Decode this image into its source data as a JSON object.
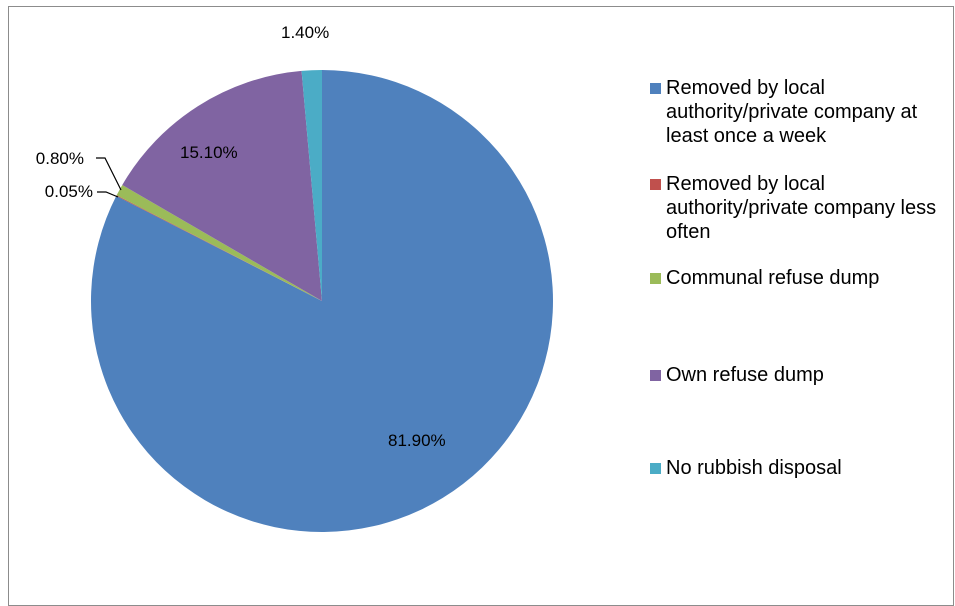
{
  "chart_data": {
    "type": "pie",
    "slices": [
      {
        "label": "Removed by local authority/private company at least once a week",
        "value": 81.9,
        "display": "81.90%",
        "color": "#4F81BD"
      },
      {
        "label": "Removed by local authority/private company less often",
        "value": 0.05,
        "display": "0.05%",
        "color": "#C0504D"
      },
      {
        "label": "Communal refuse dump",
        "value": 0.8,
        "display": "0.80%",
        "color": "#9BBB59"
      },
      {
        "label": "Own refuse dump",
        "value": 15.1,
        "display": "15.10%",
        "color": "#8064A2"
      },
      {
        "label": "No rubbish disposal",
        "value": 1.4,
        "display": "1.40%",
        "color": "#4BACC6"
      }
    ],
    "start": "12 o'clock",
    "direction": "clockwise",
    "legend_position": "right"
  },
  "legend": {
    "items": [
      {
        "text": "Removed by local authority/private company at least once a week",
        "color": "#4F81BD"
      },
      {
        "text": "Removed by local authority/private company less often",
        "color": "#C0504D"
      },
      {
        "text": "Communal refuse dump",
        "color": "#9BBB59"
      },
      {
        "text": "Own refuse dump",
        "color": "#8064A2"
      },
      {
        "text": "No rubbish disposal",
        "color": "#4BACC6"
      }
    ]
  }
}
